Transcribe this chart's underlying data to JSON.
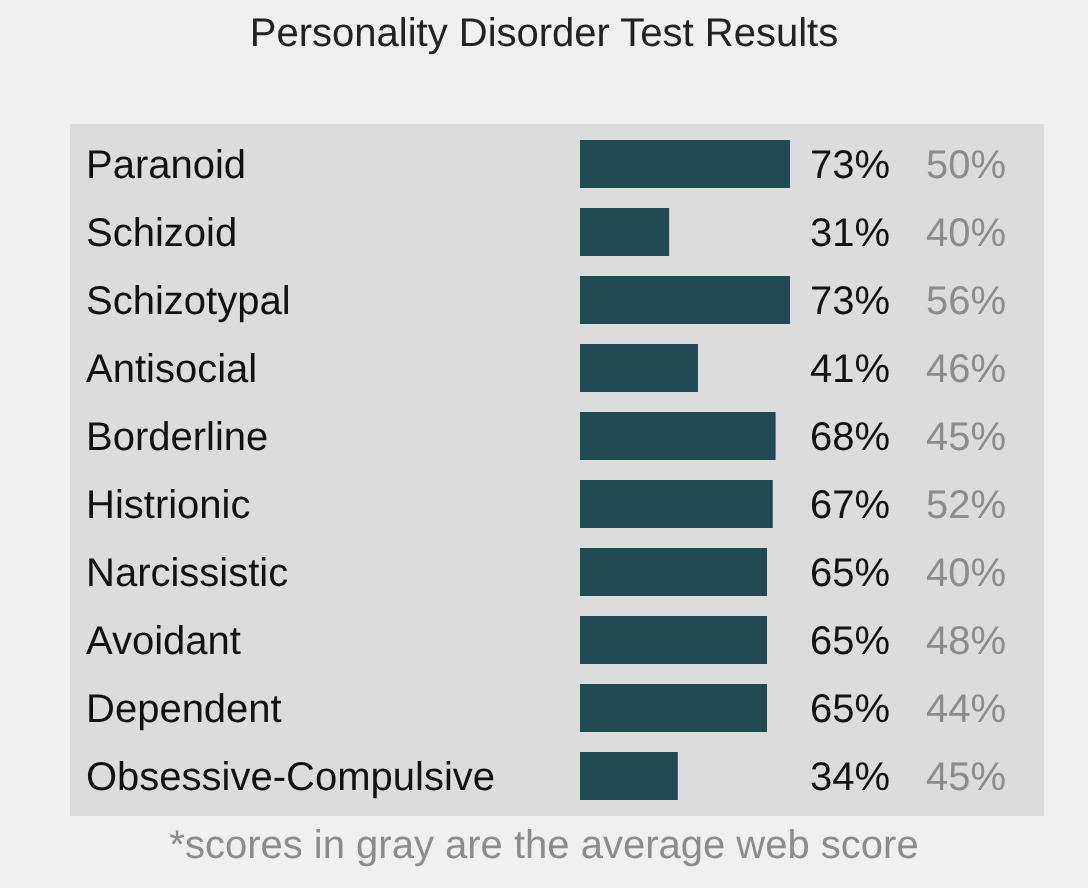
{
  "chart_data": {
    "type": "bar",
    "orientation": "horizontal",
    "title": "Personality Disorder Test Results",
    "categories": [
      "Paranoid",
      "Schizoid",
      "Schizotypal",
      "Antisocial",
      "Borderline",
      "Histrionic",
      "Narcissistic",
      "Avoidant",
      "Dependent",
      "Obsessive-Compulsive"
    ],
    "series": [
      {
        "color": "#1f4a52",
        "values": [
          73,
          31,
          73,
          41,
          68,
          67,
          65,
          65,
          65,
          34
        ],
        "value_labels": [
          "73%",
          "31%",
          "73%",
          "41%",
          "68%",
          "67%",
          "65%",
          "65%",
          "65%",
          "34%"
        ]
      }
    ],
    "annotations": [
      "50%",
      "40%",
      "56%",
      "46%",
      "45%",
      "52%",
      "40%",
      "48%",
      "44%",
      "45%",
      "*scores in gray are the average web score"
    ]
  }
}
